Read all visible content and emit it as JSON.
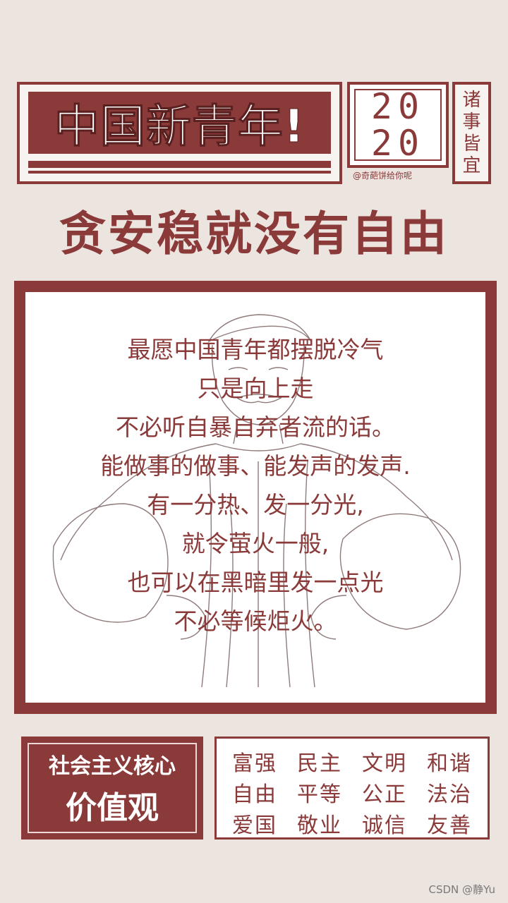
{
  "header": {
    "title": "中国新青年!",
    "year_top": "20",
    "year_bottom": "20",
    "credit": "@奇葩饼给你呢",
    "vertical": [
      "诸",
      "事",
      "皆",
      "宜"
    ]
  },
  "slogan": "贪安稳就没有自由",
  "poem": {
    "lines": [
      "最愿中国青年都摆脱冷气",
      "只是向上走",
      "不必听自暴自弃者流的话。",
      "能做事的做事、能发声的发声.",
      "有一分热、发一分光,",
      "就令萤火一般,",
      "也可以在黑暗里发一点光",
      "不必等候炬火。"
    ]
  },
  "core_values": {
    "line1": "社会主义核心",
    "line2": "价值观"
  },
  "values": [
    "富强",
    "民主",
    "文明",
    "和谐",
    "自由",
    "平等",
    "公正",
    "法治",
    "爱国",
    "敬业",
    "诚信",
    "友善"
  ],
  "watermark": "CSDN @静Yu",
  "colors": {
    "accent": "#8b3a3a",
    "background": "#ece4df"
  }
}
